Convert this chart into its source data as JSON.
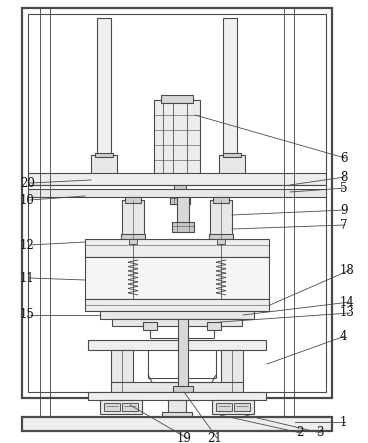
{
  "bg_color": "#ffffff",
  "lc": "#4a4a4a",
  "lw": 0.8,
  "tlw": 1.6,
  "figsize": [
    3.68,
    4.43
  ],
  "dpi": 100
}
